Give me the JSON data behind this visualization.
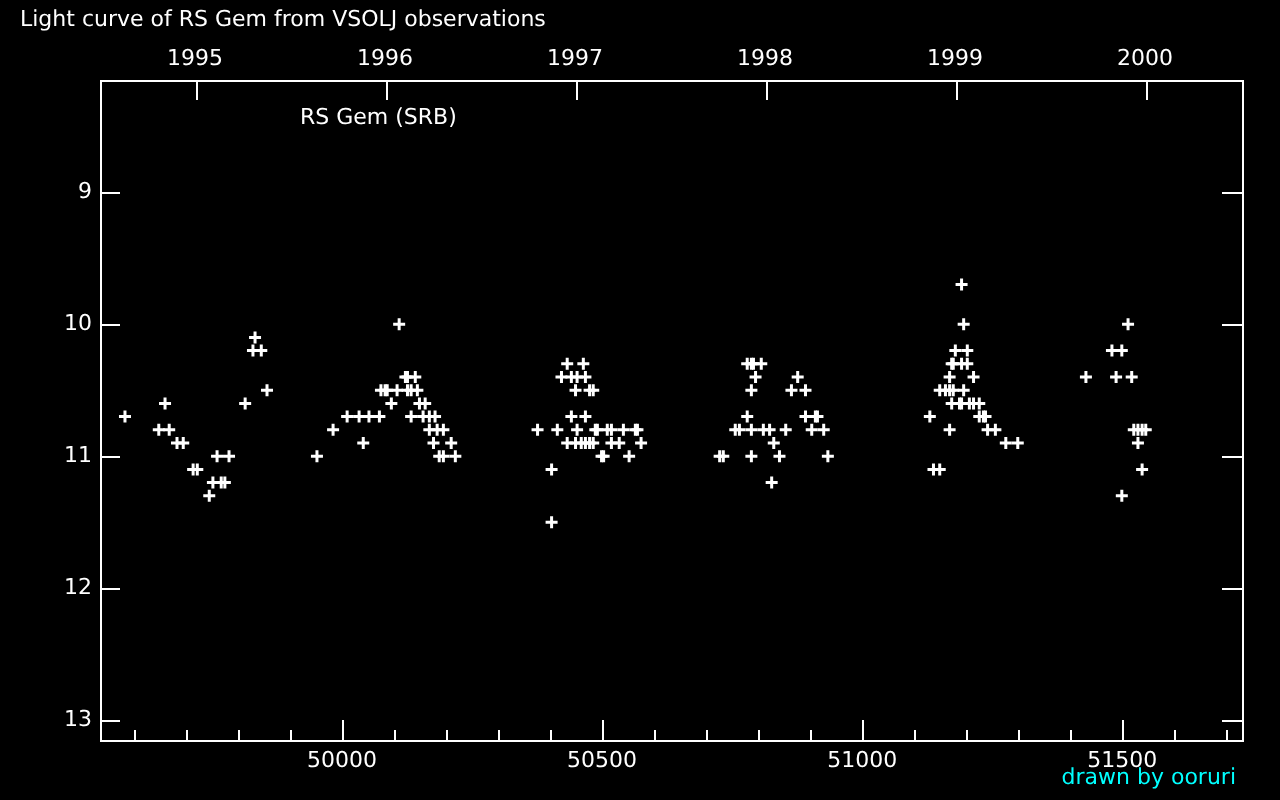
{
  "chart_data": {
    "type": "scatter",
    "title": "Light curve of RS Gem from VSOLJ observations",
    "annotations": [
      "RS Gem (SRB)",
      "drawn by ooruri"
    ],
    "color": "#ffffff",
    "marker": "cross",
    "grid": false,
    "legend": false,
    "x": [
      49583,
      49660,
      49648,
      49668,
      49683,
      49695,
      49714,
      49722,
      49745,
      49752,
      49768,
      49775,
      49760,
      49783,
      49814,
      49833,
      49829,
      49845,
      49856,
      49952,
      49983,
      50010,
      50033,
      50052,
      50072,
      50041,
      50075,
      50083,
      50087,
      50106,
      50095,
      50110,
      50122,
      50126,
      50141,
      50126,
      50133,
      50145,
      50133,
      50149,
      50160,
      50156,
      50168,
      50179,
      50168,
      50183,
      50195,
      50176,
      50210,
      50187,
      50195,
      50218,
      50403,
      50403,
      50376,
      50414,
      50433,
      50464,
      50422,
      50441,
      50452,
      50468,
      50449,
      50476,
      50483,
      50441,
      50468,
      50452,
      50487,
      50491,
      50510,
      50518,
      50541,
      50564,
      50568,
      50433,
      50449,
      50460,
      50468,
      50476,
      50483,
      50518,
      50533,
      50575,
      50499,
      50503,
      50552,
      50779,
      50787,
      50791,
      50806,
      50795,
      50876,
      50787,
      50864,
      50891,
      50779,
      50891,
      50910,
      50914,
      50756,
      50764,
      50787,
      50810,
      50822,
      50853,
      50903,
      50926,
      50830,
      50726,
      50733,
      50787,
      50841,
      50934,
      50826,
      51191,
      51195,
      51179,
      51202,
      51172,
      51175,
      51191,
      51202,
      51168,
      51214,
      51149,
      51160,
      51168,
      51175,
      51195,
      51172,
      51187,
      51191,
      51206,
      51214,
      51225,
      51130,
      51225,
      51233,
      51237,
      51168,
      51241,
      51256,
      51276,
      51299,
      51137,
      51149,
      51511,
      51480,
      51499,
      51430,
      51488,
      51518,
      51522,
      51530,
      51538,
      51545,
      51530,
      51538,
      51499
    ],
    "values": [
      10.7,
      10.6,
      10.8,
      10.8,
      10.9,
      10.9,
      11.1,
      11.1,
      11.3,
      11.2,
      11.2,
      11.2,
      11.0,
      11.0,
      10.6,
      10.1,
      10.2,
      10.2,
      10.5,
      11.0,
      10.8,
      10.7,
      10.7,
      10.7,
      10.7,
      10.9,
      10.5,
      10.5,
      10.5,
      10.5,
      10.6,
      10.0,
      10.4,
      10.4,
      10.4,
      10.5,
      10.5,
      10.5,
      10.7,
      10.6,
      10.6,
      10.7,
      10.7,
      10.7,
      10.8,
      10.8,
      10.8,
      10.9,
      10.9,
      11.0,
      11.0,
      11.0,
      11.1,
      11.5,
      10.8,
      10.8,
      10.3,
      10.3,
      10.4,
      10.4,
      10.4,
      10.4,
      10.5,
      10.5,
      10.5,
      10.7,
      10.7,
      10.8,
      10.8,
      10.8,
      10.8,
      10.8,
      10.8,
      10.8,
      10.8,
      10.9,
      10.9,
      10.9,
      10.9,
      10.9,
      10.9,
      10.9,
      10.9,
      10.9,
      11.0,
      11.0,
      11.0,
      10.3,
      10.3,
      10.3,
      10.3,
      10.4,
      10.4,
      10.5,
      10.5,
      10.5,
      10.7,
      10.7,
      10.7,
      10.7,
      10.8,
      10.8,
      10.8,
      10.8,
      10.8,
      10.8,
      10.8,
      10.8,
      10.9,
      11.0,
      11.0,
      11.0,
      11.0,
      11.0,
      11.2,
      9.7,
      10.0,
      10.2,
      10.2,
      10.3,
      10.3,
      10.3,
      10.3,
      10.4,
      10.4,
      10.5,
      10.5,
      10.5,
      10.5,
      10.5,
      10.6,
      10.6,
      10.6,
      10.6,
      10.6,
      10.6,
      10.7,
      10.7,
      10.7,
      10.7,
      10.8,
      10.8,
      10.8,
      10.9,
      10.9,
      11.1,
      11.1,
      10.0,
      10.2,
      10.2,
      10.4,
      10.4,
      10.4,
      10.8,
      10.8,
      10.8,
      10.8,
      10.9,
      11.1,
      11.3
    ],
    "xlim": [
      49535,
      51730
    ],
    "xticks": [
      {
        "value": 49600,
        "label": null
      },
      {
        "value": 49700,
        "label": null
      },
      {
        "value": 49800,
        "label": null
      },
      {
        "value": 49900,
        "label": null
      },
      50000,
      {
        "value": 50100,
        "label": null
      },
      {
        "value": 50200,
        "label": null
      },
      {
        "value": 50300,
        "label": null
      },
      {
        "value": 50400,
        "label": null
      },
      50500,
      {
        "value": 50600,
        "label": null
      },
      {
        "value": 50700,
        "label": null
      },
      {
        "value": 50800,
        "label": null
      },
      {
        "value": 50900,
        "label": null
      },
      51000,
      {
        "value": 51100,
        "label": null
      },
      {
        "value": 51200,
        "label": null
      },
      {
        "value": 51300,
        "label": null
      },
      {
        "value": 51400,
        "label": null
      },
      51500,
      {
        "value": 51600,
        "label": null
      },
      {
        "value": 51700,
        "label": null
      }
    ],
    "x2lim": [
      1994.5,
      2000.51
    ],
    "x2ticks": [
      1995,
      1996,
      1997,
      1998,
      1999,
      2000
    ],
    "ylim": [
      13.15,
      8.15
    ],
    "yticks": [
      9,
      10,
      11,
      12,
      13
    ]
  }
}
